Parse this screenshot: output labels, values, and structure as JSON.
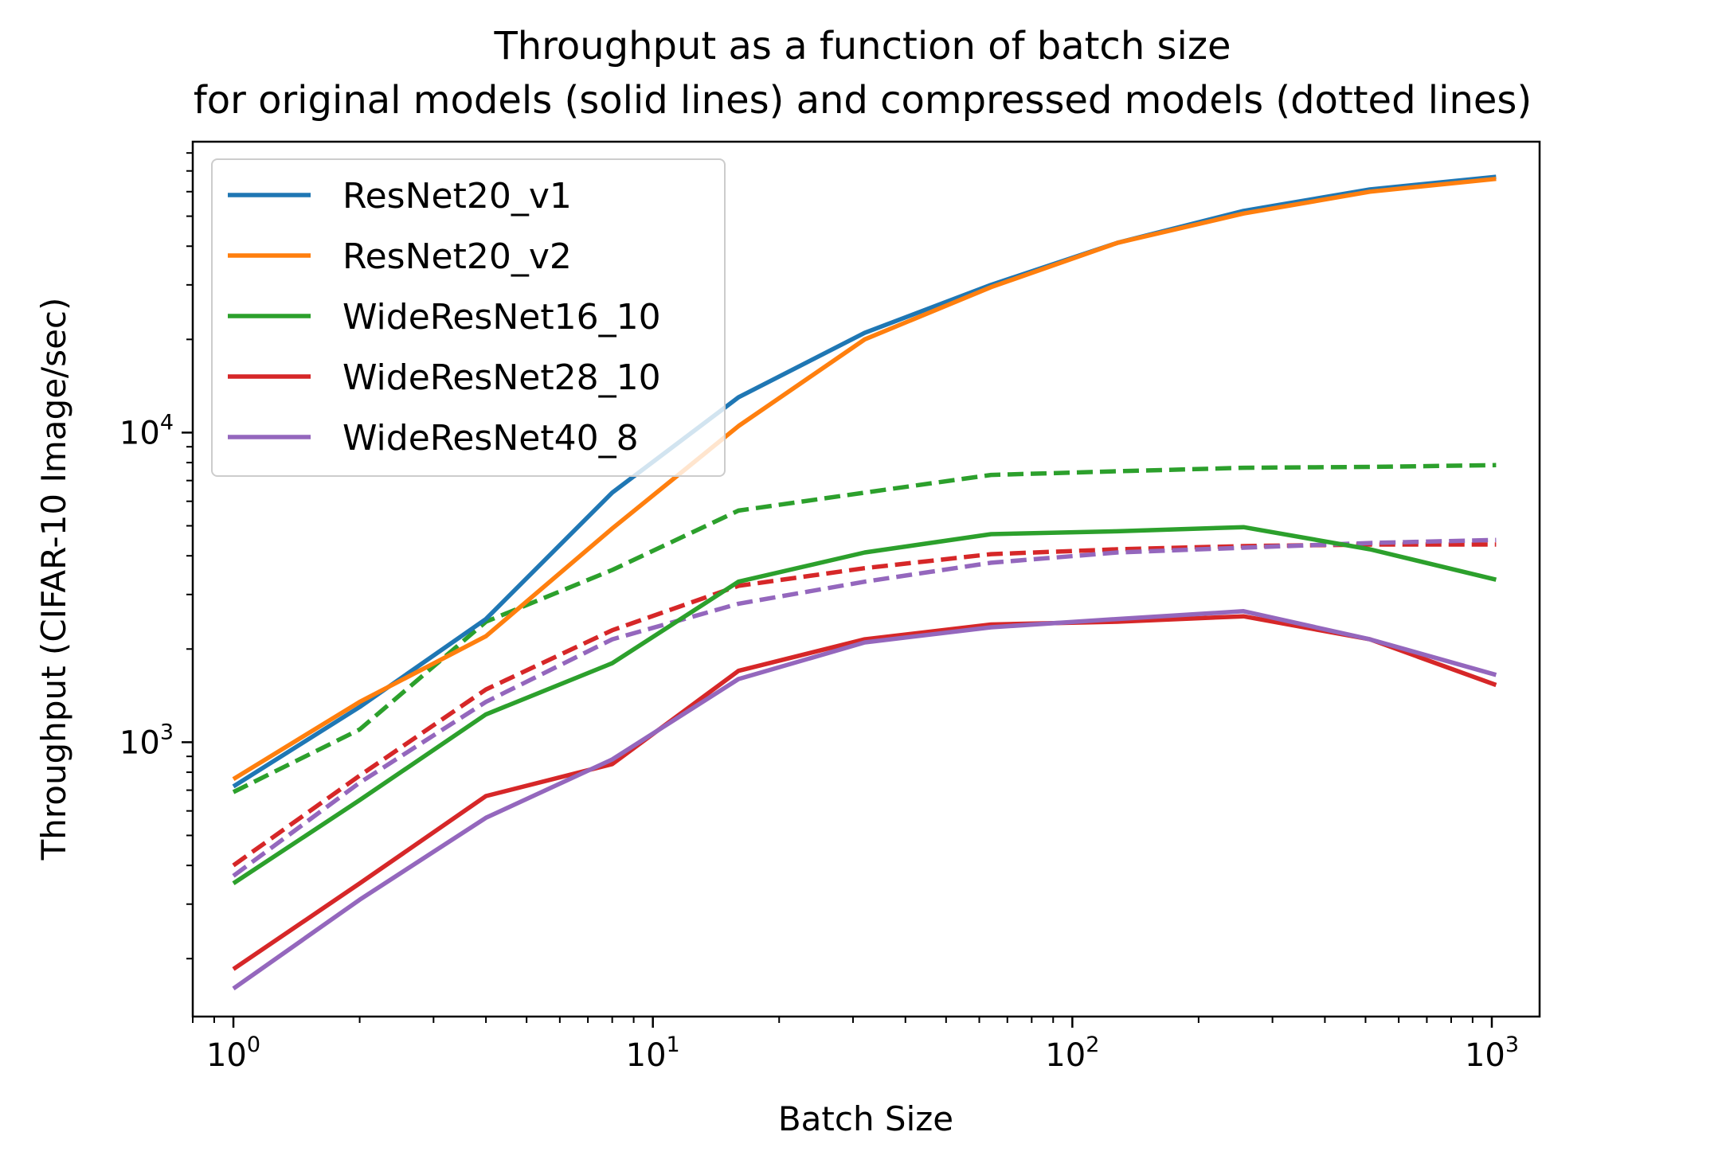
{
  "chart_data": {
    "type": "line",
    "title": "Throughput as a function of batch size",
    "subtitle": "for original models (solid lines) and compressed models (dotted lines)",
    "xlabel": "Batch Size",
    "ylabel": "Throughput (CIFAR-10 Image/sec)",
    "xscale": "log",
    "yscale": "log",
    "xlim": [
      0.8,
      1300
    ],
    "ylim": [
      130,
      87000
    ],
    "grid": false,
    "legend_position": "upper-left",
    "x_ticks": [
      {
        "base": "10",
        "exp": "0",
        "value": 1
      },
      {
        "base": "10",
        "exp": "1",
        "value": 10
      },
      {
        "base": "10",
        "exp": "2",
        "value": 100
      },
      {
        "base": "10",
        "exp": "3",
        "value": 1000
      }
    ],
    "y_ticks": [
      {
        "base": "10",
        "exp": "3",
        "value": 1000
      },
      {
        "base": "10",
        "exp": "4",
        "value": 10000
      }
    ],
    "x": [
      1,
      2,
      4,
      8,
      16,
      32,
      64,
      128,
      256,
      512,
      1024
    ],
    "series": [
      {
        "name": "ResNet20_v1",
        "style": "solid",
        "color": "#1f77b4",
        "in_legend": true,
        "values": [
          720,
          1300,
          2500,
          6400,
          13000,
          21000,
          30000,
          41000,
          52000,
          61000,
          67000
        ]
      },
      {
        "name": "ResNet20_v2",
        "style": "solid",
        "color": "#ff7f0e",
        "in_legend": true,
        "values": [
          760,
          1350,
          2200,
          4900,
          10500,
          20000,
          29500,
          41000,
          51000,
          60000,
          66000
        ]
      },
      {
        "name": "WideResNet16_10",
        "style": "solid",
        "color": "#2ca02c",
        "in_legend": true,
        "values": [
          350,
          650,
          1230,
          1800,
          3300,
          4100,
          4700,
          4800,
          4950,
          4200,
          3350
        ]
      },
      {
        "name": "WideResNet28_10",
        "style": "solid",
        "color": "#d62728",
        "in_legend": true,
        "values": [
          185,
          350,
          670,
          850,
          1700,
          2150,
          2400,
          2450,
          2550,
          2150,
          1530
        ]
      },
      {
        "name": "WideResNet40_8",
        "style": "solid",
        "color": "#9467bd",
        "in_legend": true,
        "values": [
          160,
          310,
          570,
          880,
          1600,
          2100,
          2350,
          2500,
          2650,
          2150,
          1650
        ]
      },
      {
        "name": "WideResNet16_10",
        "style": "dashed",
        "color": "#2ca02c",
        "in_legend": false,
        "values": [
          690,
          1100,
          2450,
          3600,
          5600,
          6400,
          7300,
          7500,
          7700,
          7750,
          7850
        ]
      },
      {
        "name": "WideResNet28_10",
        "style": "dashed",
        "color": "#d62728",
        "in_legend": false,
        "values": [
          400,
          780,
          1480,
          2300,
          3200,
          3650,
          4050,
          4200,
          4300,
          4350,
          4350
        ]
      },
      {
        "name": "WideResNet40_8",
        "style": "dashed",
        "color": "#9467bd",
        "in_legend": false,
        "values": [
          370,
          740,
          1350,
          2150,
          2800,
          3300,
          3800,
          4100,
          4250,
          4400,
          4500
        ]
      }
    ]
  }
}
